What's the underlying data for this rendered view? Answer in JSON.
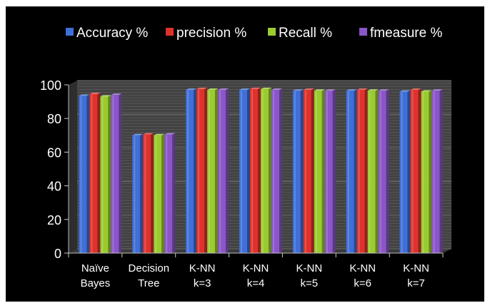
{
  "chart_data": {
    "type": "bar",
    "categories": [
      [
        "Naïve",
        "Bayes"
      ],
      [
        "Decision",
        "Tree"
      ],
      [
        "K-NN",
        "k=3"
      ],
      [
        "K-NN",
        "k=4"
      ],
      [
        "K-NN",
        "k=5"
      ],
      [
        "K-NN",
        "k=6"
      ],
      [
        "K-NN",
        "k=7"
      ]
    ],
    "series": [
      {
        "name": "Accuracy %",
        "color": "#3f6fd8",
        "values": [
          93.5,
          70,
          97,
          97,
          96.5,
          96.5,
          96
        ]
      },
      {
        "name": "precision %",
        "color": "#e0322c",
        "values": [
          94.5,
          70.5,
          97.5,
          97.5,
          97,
          97,
          97
        ]
      },
      {
        "name": "Recall %",
        "color": "#9acb2f",
        "values": [
          93,
          70,
          97,
          97.5,
          96.5,
          96.5,
          96
        ]
      },
      {
        "name": "fmeasure %",
        "color": "#8a56c8",
        "values": [
          94,
          70.5,
          97,
          97,
          96.5,
          96.5,
          96.5
        ]
      }
    ],
    "ylim": [
      0,
      100
    ],
    "yticks": [
      0,
      20,
      40,
      60,
      80,
      100
    ],
    "legend_position": "top",
    "grid": true,
    "background": "#000000",
    "plot_wall_color": "#4a4a4a"
  }
}
